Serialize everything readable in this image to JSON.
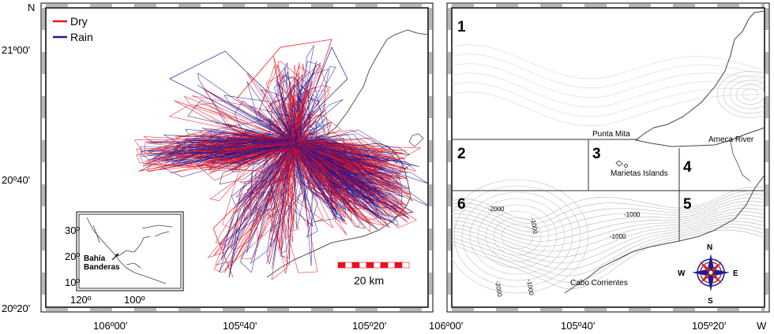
{
  "axes": {
    "north_label": "N",
    "west_label": "W",
    "y_ticks": [
      "21º00'",
      "20º40'",
      "20º20'"
    ],
    "x_ticks_left": [
      "106º00'",
      "105º40'",
      "105º20'"
    ],
    "x_ticks_right": [
      "106º00'",
      "105º40'",
      "105º20'"
    ]
  },
  "left_map": {
    "legend": [
      {
        "label": "Dry",
        "color": "#e8101a"
      },
      {
        "label": "Rain",
        "color": "#1a1a9a"
      }
    ],
    "scale_bar": "20 km",
    "inset": {
      "lat_ticks": [
        "30º",
        "20º",
        "10º"
      ],
      "lon_ticks": [
        "120º",
        "100º"
      ],
      "label_line1": "Bahía",
      "label_line2": "Banderas"
    }
  },
  "right_map": {
    "zones": [
      "1",
      "2",
      "3",
      "4",
      "5",
      "6"
    ],
    "places": [
      "Punta Mita",
      "Ameca River",
      "Marietas Islands",
      "Cabo Corrientes"
    ],
    "contours": [
      "-1000",
      "-1000",
      "-1000",
      "-1000",
      "-2000",
      "-2000"
    ],
    "compass": [
      "N",
      "S",
      "E",
      "W"
    ]
  }
}
